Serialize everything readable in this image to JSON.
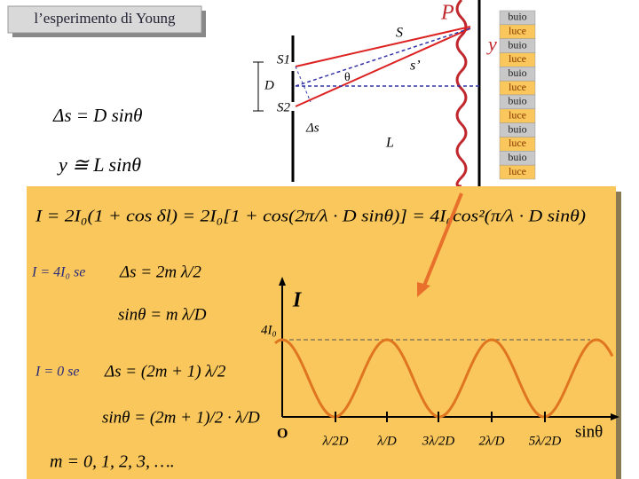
{
  "title": "l’esperimento di Young",
  "diagram": {
    "S": "S",
    "s_prime": "s’",
    "S1": "S1",
    "S2": "S2",
    "D": "D",
    "theta": "θ",
    "delta_s": "Δs",
    "L": "L",
    "P": "P",
    "y": "y"
  },
  "side_list": [
    "buio",
    "luce",
    "buio",
    "luce",
    "buio",
    "luce",
    "buio",
    "luce",
    "buio",
    "luce",
    "buio",
    "luce"
  ],
  "formulas": {
    "path_difference": "Δs = D sinθ",
    "position": "y ≅ L sinθ",
    "intensity": "I = 2I₀(1 + cos δl) = 2I₀[1 + cos(2π/λ · D sinθ)] = 4I₀cos²(π/λ · D sinθ)",
    "max_condition": "I = 4I₀ se",
    "max_delta": "Δs = 2m λ/2",
    "max_sin": "sinθ = m λ/D",
    "min_condition": "I = 0 se",
    "min_delta": "Δs = (2m + 1) λ/2",
    "min_sin": "sinθ = (2m + 1)/2 · λ/D",
    "m_values": "m = 0, 1, 2, 3, …."
  },
  "graph": {
    "y_axis": "I",
    "x_axis": "sinθ",
    "origin": "O",
    "max_label": "4I₀",
    "x_labels": [
      "λ/2D",
      "λ/D",
      "3λ/2D",
      "2λ/D",
      "5λ/2D"
    ]
  }
}
